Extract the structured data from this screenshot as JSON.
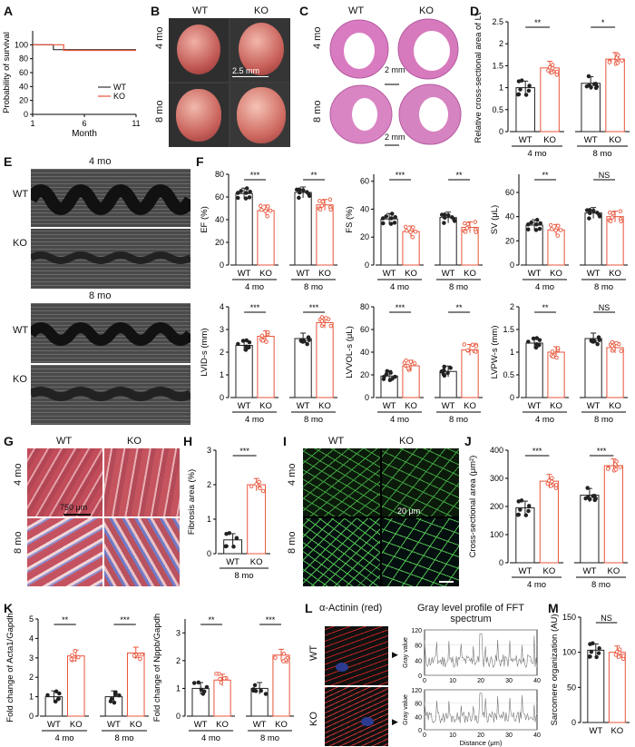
{
  "panels": {
    "A": {
      "letter": "A",
      "ylabel": "Probability of survival",
      "xlabel": "Month",
      "yticks": [
        "0",
        "20",
        "40",
        "60",
        "80",
        "100"
      ],
      "xticks": [
        "1",
        "6",
        "11"
      ],
      "legend": [
        {
          "name": "WT",
          "color": "#333333"
        },
        {
          "name": "KO",
          "color": "#e8543a"
        }
      ]
    },
    "B": {
      "letter": "B",
      "cols": [
        "WT",
        "KO"
      ],
      "rows": [
        "4 mo",
        "8 mo"
      ],
      "scale": "2.5 mm"
    },
    "C": {
      "letter": "C",
      "cols": [
        "WT",
        "KO"
      ],
      "rows": [
        "4 mo",
        "8 mo"
      ],
      "scale_top": "2 mm",
      "scale_bottom": "2 mm"
    },
    "D": {
      "letter": "D",
      "ylabel": "Relative cross-sectional area of LV"
    },
    "E": {
      "letter": "E",
      "top": "4 mo",
      "bottom": "8 mo",
      "rows": [
        "WT",
        "KO",
        "WT",
        "KO"
      ]
    },
    "F": {
      "letter": "F"
    },
    "G": {
      "letter": "G",
      "cols": [
        "WT",
        "KO"
      ],
      "rows": [
        "4 mo",
        "8 mo"
      ],
      "scale": "750 μm"
    },
    "H": {
      "letter": "H",
      "ylabel": "Fibrosis area (%)"
    },
    "I": {
      "letter": "I",
      "cols": [
        "WT",
        "KO"
      ],
      "rows": [
        "4 mo",
        "8 mo"
      ],
      "scale": "20 μm"
    },
    "J": {
      "letter": "J",
      "ylabel": "Cross-sectional area (μm²)"
    },
    "K": {
      "letter": "K"
    },
    "L": {
      "letter": "L",
      "stain": "α-Actinin (red)",
      "profile_title": "Gray level profile of FFT spectrum",
      "rows": [
        "WT",
        "KO"
      ],
      "xlabel": "Distance (μm)",
      "ylabel": "Gray value"
    },
    "M": {
      "letter": "M",
      "ylabel": "Sarcomere organization (AU)"
    }
  },
  "chart_data": [
    {
      "id": "D",
      "type": "bar",
      "groups": [
        "4 mo",
        "8 mo"
      ],
      "categories": [
        "WT",
        "KO"
      ],
      "values": [
        [
          1.0,
          1.45
        ],
        [
          1.1,
          1.65
        ]
      ],
      "ylim": [
        0,
        2.5
      ],
      "yticks": [
        0,
        0.5,
        1.0,
        1.5,
        2.0,
        2.5
      ],
      "sig": [
        "**",
        "*"
      ]
    },
    {
      "id": "EF",
      "type": "bar",
      "ylabel": "EF (%)",
      "groups": [
        "4 mo",
        "8 mo"
      ],
      "categories": [
        "WT",
        "KO"
      ],
      "values": [
        [
          63,
          48
        ],
        [
          64,
          53
        ]
      ],
      "ylim": [
        0,
        80
      ],
      "yticks": [
        0,
        20,
        40,
        60,
        80
      ],
      "sig": [
        "***",
        "**"
      ]
    },
    {
      "id": "FS",
      "type": "bar",
      "ylabel": "FS (%)",
      "groups": [
        "4 mo",
        "8 mo"
      ],
      "categories": [
        "WT",
        "KO"
      ],
      "values": [
        [
          33,
          24
        ],
        [
          34,
          27
        ]
      ],
      "ylim": [
        0,
        65
      ],
      "yticks": [
        0,
        20,
        40,
        60
      ],
      "sig": [
        "***",
        "**"
      ]
    },
    {
      "id": "SV",
      "type": "bar",
      "ylabel": "SV (μL)",
      "groups": [
        "4 mo",
        "8 mo"
      ],
      "categories": [
        "WT",
        "KO"
      ],
      "values": [
        [
          33,
          29
        ],
        [
          43,
          40
        ]
      ],
      "ylim": [
        0,
        75
      ],
      "yticks": [
        0,
        20,
        40,
        60
      ],
      "sig": [
        "**",
        "NS"
      ]
    },
    {
      "id": "LVIDs",
      "type": "bar",
      "ylabel": "LVID-s (mm)",
      "groups": [
        "4 mo",
        "8 mo"
      ],
      "categories": [
        "WT",
        "KO"
      ],
      "values": [
        [
          2.3,
          2.7
        ],
        [
          2.6,
          3.3
        ]
      ],
      "ylim": [
        0,
        4
      ],
      "yticks": [
        0,
        1,
        2,
        3,
        4
      ],
      "sig": [
        "***",
        "***"
      ]
    },
    {
      "id": "LVVOLs",
      "type": "bar",
      "ylabel": "LVVOL-s (μL)",
      "groups": [
        "4 mo",
        "8 mo"
      ],
      "categories": [
        "WT",
        "KO"
      ],
      "values": [
        [
          19,
          28
        ],
        [
          23,
          42
        ]
      ],
      "ylim": [
        0,
        80
      ],
      "yticks": [
        0,
        20,
        40,
        60,
        80
      ],
      "sig": [
        "***",
        "**"
      ]
    },
    {
      "id": "LVPWs",
      "type": "bar",
      "ylabel": "LVPW-s (mm)",
      "groups": [
        "4 mo",
        "8 mo"
      ],
      "categories": [
        "WT",
        "KO"
      ],
      "values": [
        [
          1.2,
          1.0
        ],
        [
          1.3,
          1.1
        ]
      ],
      "ylim": [
        0,
        2.0
      ],
      "yticks": [
        0,
        0.5,
        1.0,
        1.5,
        2.0
      ],
      "sig": [
        "**",
        "NS"
      ]
    },
    {
      "id": "H",
      "type": "bar",
      "groups": [
        "8 mo"
      ],
      "categories": [
        "WT",
        "KO"
      ],
      "values": [
        [
          0.4,
          2.0
        ]
      ],
      "ylim": [
        0,
        3
      ],
      "yticks": [
        0,
        1,
        2,
        3
      ],
      "sig": [
        "***"
      ]
    },
    {
      "id": "J",
      "type": "bar",
      "groups": [
        "4 mo",
        "8 mo"
      ],
      "categories": [
        "WT",
        "KO"
      ],
      "values": [
        [
          195,
          290
        ],
        [
          240,
          345
        ]
      ],
      "ylim": [
        0,
        400
      ],
      "yticks": [
        0,
        100,
        200,
        300,
        400
      ],
      "sig": [
        "***",
        "***"
      ]
    },
    {
      "id": "Acta1",
      "type": "bar",
      "ylabel": "Fold change of Acta1/Gapdh",
      "groups": [
        "4 mo",
        "8 mo"
      ],
      "categories": [
        "WT",
        "KO"
      ],
      "values": [
        [
          1.0,
          3.1
        ],
        [
          1.0,
          3.25
        ]
      ],
      "ylim": [
        0,
        5
      ],
      "yticks": [
        0,
        1,
        2,
        3,
        4,
        5
      ],
      "sig": [
        "**",
        "***"
      ]
    },
    {
      "id": "Nppb",
      "type": "bar",
      "ylabel": "Fold change of Nppb/Gapdh",
      "groups": [
        "4 mo",
        "8 mo"
      ],
      "categories": [
        "WT",
        "KO"
      ],
      "values": [
        [
          1.0,
          1.3
        ],
        [
          1.0,
          2.2
        ]
      ],
      "ylim": [
        0,
        3.5
      ],
      "yticks": [
        0,
        1,
        2,
        3
      ],
      "sig": [
        "**",
        "***"
      ]
    },
    {
      "id": "M",
      "type": "bar",
      "groups": [
        ""
      ],
      "categories": [
        "WT",
        "KO"
      ],
      "values": [
        [
          103,
          100
        ]
      ],
      "ylim": [
        0,
        150
      ],
      "yticks": [
        0,
        50,
        100,
        150
      ],
      "sig": [
        "NS"
      ]
    },
    {
      "id": "L_WT",
      "type": "line",
      "x": [
        0,
        10,
        20,
        30,
        40
      ],
      "ylim": [
        0,
        120
      ],
      "yticks": [
        0,
        40,
        80,
        120
      ],
      "xticks": [
        0,
        10,
        20,
        30,
        40
      ]
    },
    {
      "id": "L_KO",
      "type": "line",
      "x": [
        0,
        10,
        20,
        30,
        40
      ],
      "ylim": [
        0,
        120
      ],
      "yticks": [
        0,
        40,
        80,
        120
      ],
      "xticks": [
        0,
        10,
        20,
        30,
        40
      ]
    },
    {
      "id": "A",
      "type": "line",
      "series": [
        {
          "name": "WT",
          "x": [
            1,
            3,
            3,
            11
          ],
          "y": [
            100,
            100,
            93,
            93
          ]
        },
        {
          "name": "KO",
          "x": [
            1,
            4,
            4,
            11
          ],
          "y": [
            100,
            100,
            92,
            92
          ]
        }
      ],
      "xlim": [
        1,
        11
      ],
      "ylim": [
        0,
        120
      ]
    }
  ]
}
